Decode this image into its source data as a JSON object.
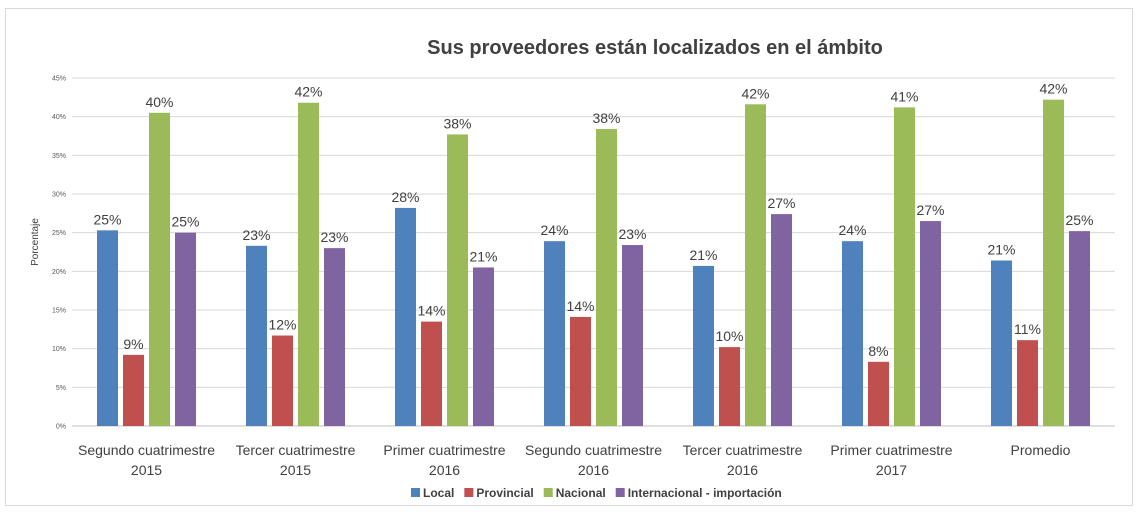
{
  "chart_data": {
    "type": "bar",
    "title": "Sus proveedores están localizados en el ámbito",
    "xlabel": "",
    "ylabel": "Porcentaje",
    "ylim": [
      0,
      0.45
    ],
    "yticks": [
      "0%",
      "5%",
      "10%",
      "15%",
      "20%",
      "25%",
      "30%",
      "35%",
      "40%",
      "45%"
    ],
    "grid": true,
    "legend": "bottom",
    "categories": [
      [
        "Segundo cuatrimestre",
        "2015"
      ],
      [
        "Tercer cuatrimestre",
        "2015"
      ],
      [
        "Primer cuatrimestre",
        "2016"
      ],
      [
        "Segundo cuatrimestre",
        "2016"
      ],
      [
        "Tercer cuatrimestre",
        "2016"
      ],
      [
        "Primer cuatrimestre",
        "2017"
      ],
      [
        "Promedio"
      ]
    ],
    "series": [
      {
        "name": "Local",
        "color": "#4f81bd",
        "values": [
          0.253,
          0.233,
          0.282,
          0.239,
          0.207,
          0.239,
          0.214
        ],
        "labels": [
          "25%",
          "23%",
          "28%",
          "24%",
          "21%",
          "24%",
          "21%"
        ]
      },
      {
        "name": "Provincial",
        "color": "#c0504d",
        "values": [
          0.092,
          0.117,
          0.135,
          0.141,
          0.102,
          0.083,
          0.111
        ],
        "labels": [
          "9%",
          "12%",
          "14%",
          "14%",
          "10%",
          "8%",
          "11%"
        ]
      },
      {
        "name": "Nacional",
        "color": "#9bbb59",
        "values": [
          0.405,
          0.418,
          0.377,
          0.384,
          0.416,
          0.412,
          0.422
        ],
        "labels": [
          "40%",
          "42%",
          "38%",
          "38%",
          "42%",
          "41%",
          "42%"
        ]
      },
      {
        "name": "Internacional - importación",
        "color": "#8064a2",
        "values": [
          0.25,
          0.23,
          0.205,
          0.234,
          0.274,
          0.265,
          0.252
        ],
        "labels": [
          "25%",
          "23%",
          "21%",
          "23%",
          "27%",
          "27%",
          "25%"
        ]
      }
    ]
  }
}
